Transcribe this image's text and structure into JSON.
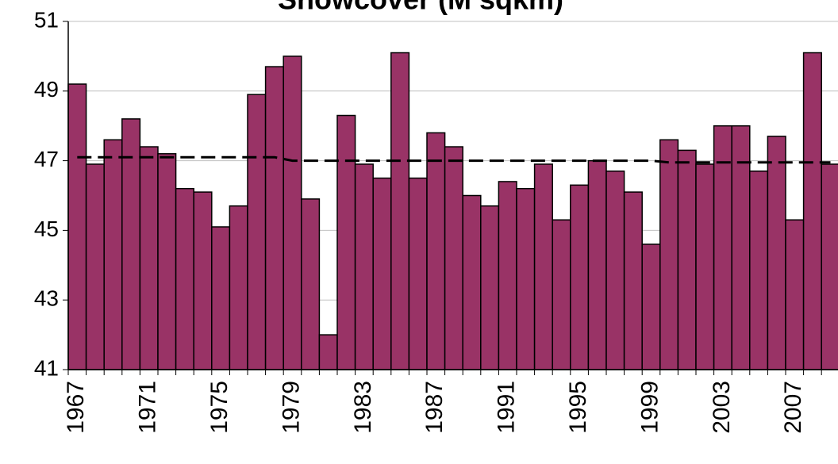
{
  "chart_data": {
    "type": "bar",
    "title": "Snowcover (M sqkm)",
    "categories": [
      "1967",
      null,
      null,
      null,
      "1971",
      null,
      null,
      null,
      "1975",
      null,
      null,
      null,
      "1979",
      null,
      null,
      null,
      "1983",
      null,
      null,
      null,
      "1987",
      null,
      null,
      null,
      "1991",
      null,
      null,
      null,
      "1995",
      null,
      null,
      null,
      "1999",
      null,
      null,
      null,
      "2003",
      null,
      null,
      null,
      "2007",
      null,
      null
    ],
    "series": [
      {
        "type": "bar",
        "color": "#993366",
        "values": [
          49.2,
          46.9,
          47.6,
          48.2,
          47.4,
          47.2,
          46.2,
          46.1,
          45.1,
          45.7,
          48.9,
          49.7,
          50.0,
          45.9,
          42.0,
          48.3,
          46.9,
          46.5,
          50.1,
          46.5,
          47.8,
          47.4,
          46.0,
          45.7,
          46.4,
          46.2,
          46.9,
          45.3,
          46.3,
          47.0,
          46.7,
          46.1,
          44.6,
          47.6,
          47.3,
          46.9,
          48.0,
          48.0,
          46.7,
          47.7,
          45.3,
          50.1,
          46.9
        ]
      },
      {
        "type": "line",
        "color": "#000000",
        "dashed": true,
        "values": [
          47.1,
          47.1,
          47.1,
          47.1,
          47.1,
          47.1,
          47.1,
          47.1,
          47.1,
          47.1,
          47.1,
          47.1,
          47.0,
          47.0,
          47.0,
          47.0,
          47.0,
          47.0,
          47.0,
          47.0,
          47.0,
          47.0,
          47.0,
          47.0,
          47.0,
          47.0,
          47.0,
          47.0,
          47.0,
          47.0,
          47.0,
          47.0,
          47.0,
          46.95,
          46.95,
          46.95,
          46.95,
          46.95,
          46.95,
          46.95,
          46.95,
          46.95,
          46.95
        ]
      }
    ],
    "ylim": [
      41,
      51
    ],
    "yticks": [
      41,
      43,
      45,
      47,
      49,
      51
    ],
    "grid": true
  }
}
